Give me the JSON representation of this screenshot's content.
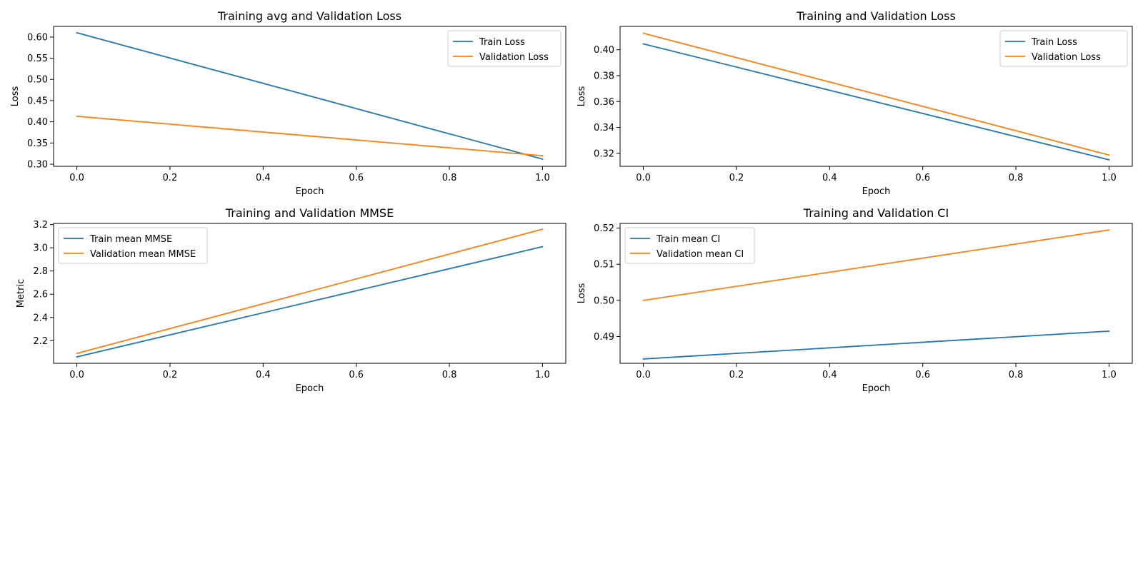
{
  "chart_data": [
    {
      "type": "line",
      "title": "Training avg and Validation Loss",
      "xlabel": "Epoch",
      "ylabel": "Loss",
      "xlim": [
        -0.05,
        1.05
      ],
      "ylim": [
        0.295,
        0.625
      ],
      "xticks": [
        "0.0",
        "0.2",
        "0.4",
        "0.6",
        "0.8",
        "1.0"
      ],
      "yticks": [
        "0.30",
        "0.35",
        "0.40",
        "0.45",
        "0.50",
        "0.55",
        "0.60"
      ],
      "legend_position": "upper right",
      "grid": false,
      "x": [
        0,
        1
      ],
      "series": [
        {
          "name": "Train Loss",
          "color": "#1f77b4",
          "values": [
            0.61,
            0.312
          ]
        },
        {
          "name": "Validation Loss",
          "color": "#ff7f0e",
          "values": [
            0.413,
            0.32
          ]
        }
      ]
    },
    {
      "type": "line",
      "title": "Training and Validation Loss",
      "xlabel": "Epoch",
      "ylabel": "Loss",
      "xlim": [
        -0.05,
        1.05
      ],
      "ylim": [
        0.31,
        0.418
      ],
      "xticks": [
        "0.0",
        "0.2",
        "0.4",
        "0.6",
        "0.8",
        "1.0"
      ],
      "yticks": [
        "0.32",
        "0.34",
        "0.36",
        "0.38",
        "0.40"
      ],
      "legend_position": "upper right",
      "grid": false,
      "x": [
        0,
        1
      ],
      "series": [
        {
          "name": "Train Loss",
          "color": "#1f77b4",
          "values": [
            0.4045,
            0.315
          ]
        },
        {
          "name": "Validation Loss",
          "color": "#ff7f0e",
          "values": [
            0.4127,
            0.3187
          ]
        }
      ]
    },
    {
      "type": "line",
      "title": "Training and Validation MMSE",
      "xlabel": "Epoch",
      "ylabel": "Metric",
      "xlim": [
        -0.05,
        1.05
      ],
      "ylim": [
        2.005,
        3.21
      ],
      "xticks": [
        "0.0",
        "0.2",
        "0.4",
        "0.6",
        "0.8",
        "1.0"
      ],
      "yticks": [
        "2.2",
        "2.4",
        "2.6",
        "2.8",
        "3.0",
        "3.2"
      ],
      "legend_position": "upper left",
      "grid": false,
      "x": [
        0,
        1
      ],
      "series": [
        {
          "name": "Train mean MMSE",
          "color": "#1f77b4",
          "values": [
            2.06,
            3.01
          ]
        },
        {
          "name": "Validation mean MMSE",
          "color": "#ff7f0e",
          "values": [
            2.09,
            3.16
          ]
        }
      ]
    },
    {
      "type": "line",
      "title": "Training and Validation CI",
      "xlabel": "Epoch",
      "ylabel": "Loss",
      "xlim": [
        -0.05,
        1.05
      ],
      "ylim": [
        0.4826,
        0.5213
      ],
      "xticks": [
        "0.0",
        "0.2",
        "0.4",
        "0.6",
        "0.8",
        "1.0"
      ],
      "yticks": [
        "0.49",
        "0.50",
        "0.51",
        "0.52"
      ],
      "legend_position": "upper left",
      "grid": false,
      "x": [
        0,
        1
      ],
      "series": [
        {
          "name": "Train mean CI",
          "color": "#1f77b4",
          "values": [
            0.4838,
            0.4915
          ]
        },
        {
          "name": "Validation mean CI",
          "color": "#ff7f0e",
          "values": [
            0.5,
            0.5195
          ]
        }
      ]
    }
  ]
}
